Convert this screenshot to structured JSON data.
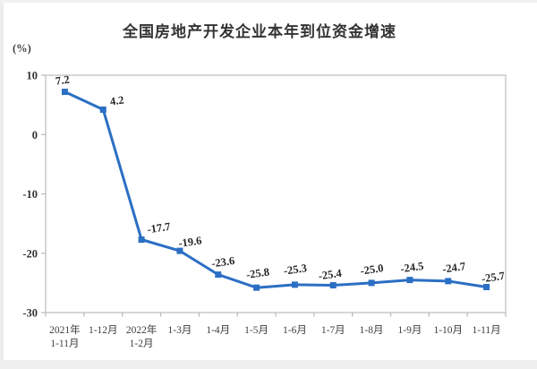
{
  "page": {
    "background": "#ffffff",
    "edge_color": "#ececec",
    "footer_strip_color": "#efefef"
  },
  "chart_data": {
    "type": "line",
    "title": "全国房地产开发企业本年到位资金增速",
    "unit_label": "(%)",
    "categories": [
      "2021年\n1-11月",
      "1-12月",
      "2022年\n1-2月",
      "1-3月",
      "1-4月",
      "1-5月",
      "1-6月",
      "1-7月",
      "1-8月",
      "1-9月",
      "1-10月",
      "1-11月"
    ],
    "series": [
      {
        "name": "本年到位资金增速",
        "values": [
          7.2,
          4.2,
          -17.7,
          -19.6,
          -23.6,
          -25.8,
          -25.3,
          -25.4,
          -25.0,
          -24.5,
          -24.7,
          -25.7
        ]
      }
    ],
    "data_labels": [
      "7.2",
      "4.2",
      "-17.7",
      "-19.6",
      "-23.6",
      "-25.8",
      "-25.3",
      "-25.4",
      "-25.0",
      "-24.5",
      "-24.7",
      "-25.7"
    ],
    "xlabel": "",
    "ylabel": "(%)",
    "ylim": [
      -30,
      10
    ],
    "yticks": [
      10,
      0,
      -10,
      -20,
      -30
    ],
    "grid": false,
    "legend_position": "none",
    "marker": "square",
    "data_labels_rotation": -8,
    "series_color": "#2B6FC4",
    "marker_color": "#2B6FC4",
    "data_label_color": "#262626",
    "axis_line_color": "#c6c6c6",
    "tick_color": "#b8b8b8",
    "y_label_color": "#333333",
    "x_label_color": "#404040",
    "title_color": "#333333"
  }
}
